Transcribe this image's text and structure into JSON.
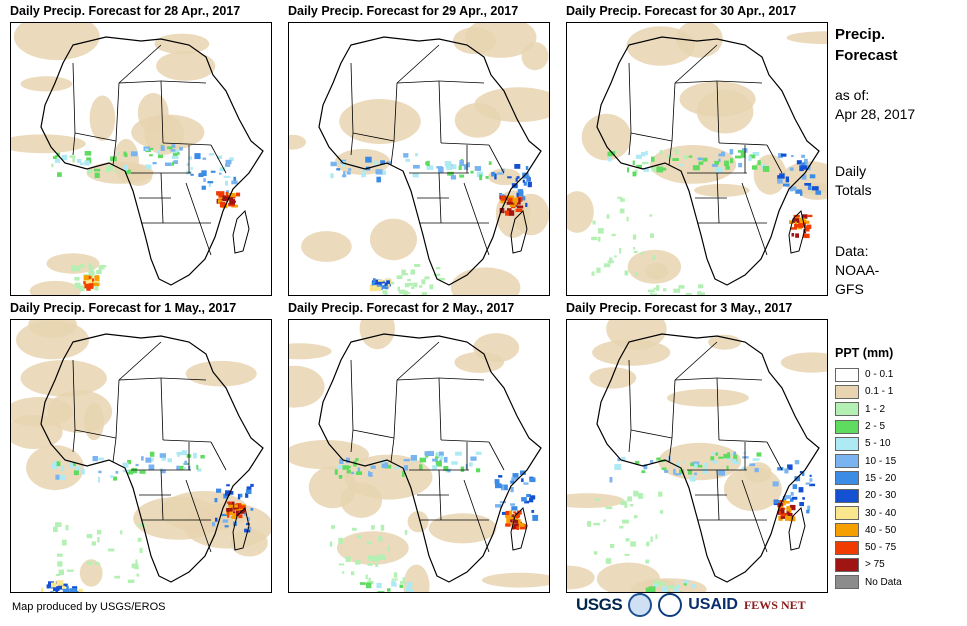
{
  "panels": [
    {
      "title": "Daily Precip. Forecast for 28 Apr., 2017"
    },
    {
      "title": "Daily Precip. Forecast for 29 Apr., 2017"
    },
    {
      "title": "Daily Precip. Forecast for 30 Apr., 2017"
    },
    {
      "title": "Daily Precip. Forecast for 1 May., 2017"
    },
    {
      "title": "Daily Precip. Forecast for 2 May., 2017"
    },
    {
      "title": "Daily Precip. Forecast for 3 May., 2017"
    }
  ],
  "info": {
    "title": "Precip. Forecast",
    "asof_label": "as of:",
    "asof_date": "Apr 28, 2017",
    "totals": "Daily Totals",
    "source_label": "Data:",
    "source_value": "NOAA-GFS"
  },
  "legend": {
    "title": "PPT (mm)",
    "items": [
      {
        "label": "0 - 0.1",
        "color": "#ffffff"
      },
      {
        "label": "0.1 - 1",
        "color": "#e8d4b0"
      },
      {
        "label": "1 - 2",
        "color": "#b4f0b4"
      },
      {
        "label": "2 - 5",
        "color": "#5fdc5f"
      },
      {
        "label": "5 - 10",
        "color": "#aeeaf4"
      },
      {
        "label": "10 - 15",
        "color": "#7ab4f0"
      },
      {
        "label": "15 - 20",
        "color": "#3c8ce6"
      },
      {
        "label": "20 - 30",
        "color": "#1450d2"
      },
      {
        "label": "30 - 40",
        "color": "#fae68c"
      },
      {
        "label": "40 - 50",
        "color": "#f5a000"
      },
      {
        "label": "50 - 75",
        "color": "#f03c00"
      },
      {
        "label": "> 75",
        "color": "#a01414"
      },
      {
        "label": "No Data",
        "color": "#8c8c8c"
      }
    ]
  },
  "credit": "Map produced by USGS/EROS",
  "logos": {
    "usgs": "USGS",
    "usaid": "USAID",
    "fews": "FEWS NET"
  }
}
